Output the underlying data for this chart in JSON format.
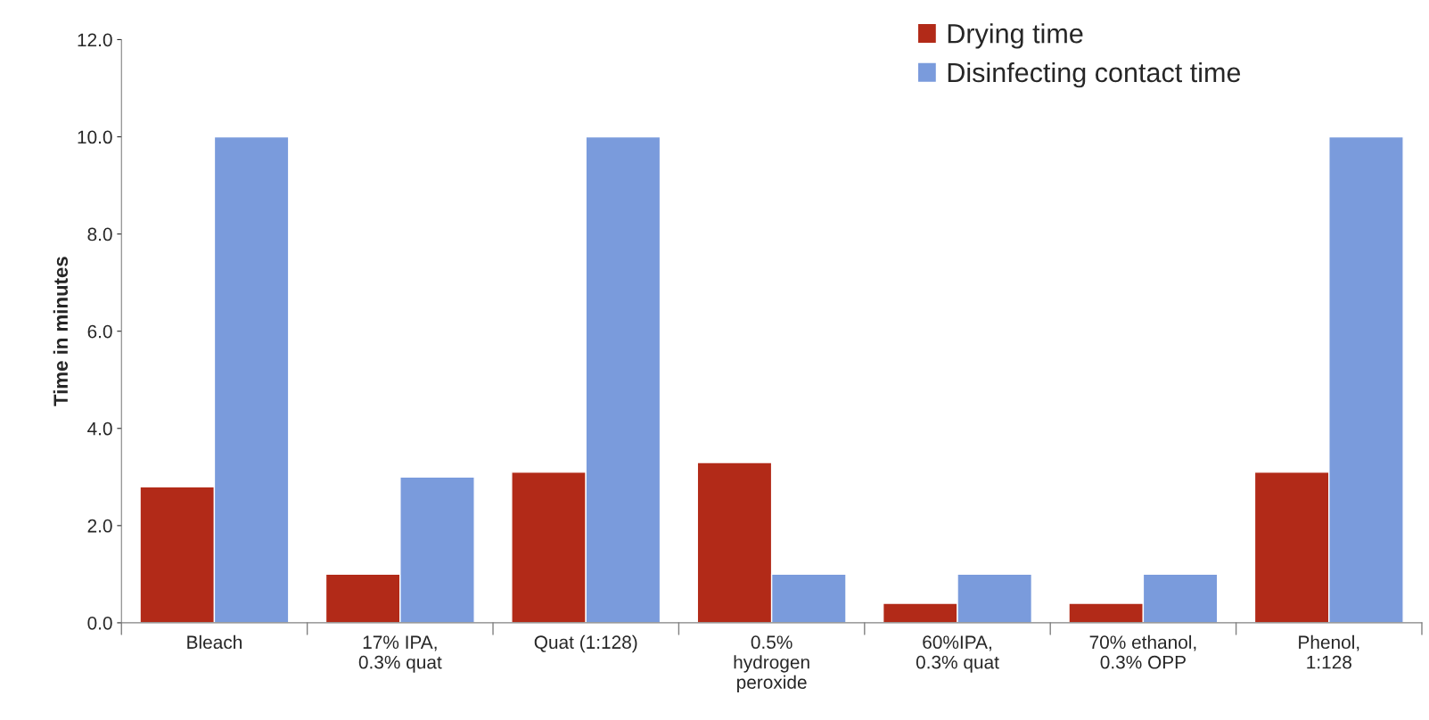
{
  "chart_data": {
    "type": "bar",
    "ylabel": "Time in minutes",
    "categories": [
      "Bleach",
      "17% IPA,\n0.3% quat",
      "Quat (1:128)",
      "0.5%\nhydrogen\nperoxide",
      "60%IPA,\n0.3% quat",
      "70% ethanol,\n0.3% OPP",
      "Phenol,\n1:128"
    ],
    "series": [
      {
        "name": "Drying time",
        "color": "#b22a18",
        "values": [
          2.8,
          1.0,
          3.1,
          3.3,
          0.4,
          0.4,
          3.1
        ]
      },
      {
        "name": "Disinfecting contact time",
        "color": "#7a9bdc",
        "values": [
          10.0,
          3.0,
          10.0,
          1.0,
          1.0,
          1.0,
          10.0
        ]
      }
    ],
    "ylim": [
      0,
      12
    ],
    "yticks": [
      {
        "value": 0,
        "label": "0.0"
      },
      {
        "value": 2,
        "label": "2.0"
      },
      {
        "value": 4,
        "label": "4.0"
      },
      {
        "value": 6,
        "label": "6.0"
      },
      {
        "value": 8,
        "label": "8.0"
      },
      {
        "value": 10,
        "label": "10.0"
      },
      {
        "value": 12,
        "label": "12.0"
      }
    ],
    "grid": false,
    "legend": "top right"
  }
}
